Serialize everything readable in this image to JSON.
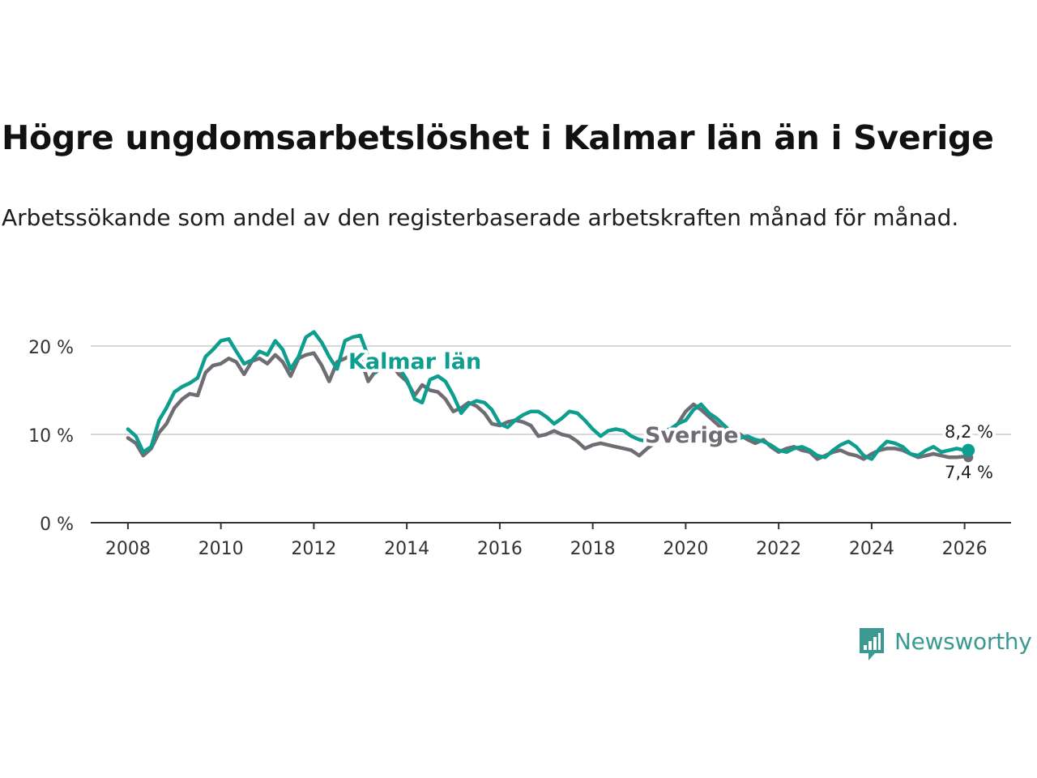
{
  "title": "Högre ungdomsarbetslöshet i Kalmar län än i Sverige",
  "subtitle": "Arbetssökande som andel av den registerbaserade arbetskraften månad för månad.",
  "brand": {
    "name": "Newsworthy"
  },
  "colors": {
    "kalmar": "#0e9e8f",
    "sverige": "#6f6c73",
    "grid": "#d9d9d9",
    "axis": "#333333",
    "brand": "#3a9a92"
  },
  "chart_data": {
    "type": "line",
    "title": "Högre ungdomsarbetslöshet i Kalmar län än i Sverige",
    "xlabel": "",
    "ylabel": "",
    "xlim": [
      2007.2,
      2027.0
    ],
    "ylim": [
      0,
      20
    ],
    "y_ticks": [
      0,
      10,
      20
    ],
    "y_tick_labels": [
      "0 %",
      "10 %",
      "20 %"
    ],
    "x_ticks": [
      2008,
      2010,
      2012,
      2014,
      2016,
      2018,
      2020,
      2022,
      2024,
      2026
    ],
    "x_tick_labels": [
      "2008",
      "2010",
      "2012",
      "2014",
      "2016",
      "2018",
      "2020",
      "2022",
      "2024",
      "2026"
    ],
    "grid": true,
    "series": [
      {
        "name": "Sverige",
        "label": "Sverige",
        "end_label": "7,4 %",
        "points": [
          [
            2008.0,
            9.6
          ],
          [
            2008.17,
            9.0
          ],
          [
            2008.33,
            7.6
          ],
          [
            2008.5,
            8.4
          ],
          [
            2008.67,
            10.2
          ],
          [
            2008.83,
            11.2
          ],
          [
            2009.0,
            13.0
          ],
          [
            2009.17,
            14.0
          ],
          [
            2009.33,
            14.6
          ],
          [
            2009.5,
            14.4
          ],
          [
            2009.67,
            17.0
          ],
          [
            2009.83,
            17.8
          ],
          [
            2010.0,
            18.0
          ],
          [
            2010.17,
            18.6
          ],
          [
            2010.33,
            18.2
          ],
          [
            2010.5,
            16.8
          ],
          [
            2010.67,
            18.3
          ],
          [
            2010.83,
            18.6
          ],
          [
            2011.0,
            18.0
          ],
          [
            2011.17,
            19.0
          ],
          [
            2011.33,
            18.2
          ],
          [
            2011.5,
            16.6
          ],
          [
            2011.67,
            18.6
          ],
          [
            2011.83,
            19.0
          ],
          [
            2012.0,
            19.2
          ],
          [
            2012.17,
            17.8
          ],
          [
            2012.33,
            16.0
          ],
          [
            2012.5,
            18.2
          ],
          [
            2012.67,
            18.6
          ],
          [
            2012.83,
            19.0
          ],
          [
            2013.0,
            18.6
          ],
          [
            2013.17,
            16.0
          ],
          [
            2013.33,
            17.2
          ],
          [
            2013.5,
            17.8
          ],
          [
            2013.67,
            18.0
          ],
          [
            2013.83,
            16.8
          ],
          [
            2014.0,
            16.0
          ],
          [
            2014.17,
            14.4
          ],
          [
            2014.33,
            15.6
          ],
          [
            2014.5,
            15.0
          ],
          [
            2014.67,
            14.8
          ],
          [
            2014.83,
            14.0
          ],
          [
            2015.0,
            12.6
          ],
          [
            2015.17,
            13.0
          ],
          [
            2015.33,
            13.6
          ],
          [
            2015.5,
            13.2
          ],
          [
            2015.67,
            12.4
          ],
          [
            2015.83,
            11.2
          ],
          [
            2016.0,
            11.0
          ],
          [
            2016.17,
            11.4
          ],
          [
            2016.33,
            11.6
          ],
          [
            2016.5,
            11.4
          ],
          [
            2016.67,
            11.0
          ],
          [
            2016.83,
            9.8
          ],
          [
            2017.0,
            10.0
          ],
          [
            2017.17,
            10.4
          ],
          [
            2017.33,
            10.0
          ],
          [
            2017.5,
            9.8
          ],
          [
            2017.67,
            9.2
          ],
          [
            2017.83,
            8.4
          ],
          [
            2018.0,
            8.8
          ],
          [
            2018.17,
            9.0
          ],
          [
            2018.33,
            8.8
          ],
          [
            2018.5,
            8.6
          ],
          [
            2018.67,
            8.4
          ],
          [
            2018.83,
            8.2
          ],
          [
            2019.0,
            7.6
          ],
          [
            2019.17,
            8.4
          ],
          [
            2019.33,
            9.0
          ],
          [
            2019.5,
            9.6
          ],
          [
            2019.67,
            10.4
          ],
          [
            2019.83,
            11.2
          ],
          [
            2020.0,
            12.6
          ],
          [
            2020.17,
            13.4
          ],
          [
            2020.33,
            12.8
          ],
          [
            2020.5,
            12.0
          ],
          [
            2020.67,
            11.2
          ],
          [
            2020.83,
            10.4
          ],
          [
            2021.0,
            10.6
          ],
          [
            2021.17,
            10.0
          ],
          [
            2021.33,
            9.4
          ],
          [
            2021.5,
            9.0
          ],
          [
            2021.67,
            9.4
          ],
          [
            2021.83,
            8.6
          ],
          [
            2022.0,
            8.0
          ],
          [
            2022.17,
            8.4
          ],
          [
            2022.33,
            8.6
          ],
          [
            2022.5,
            8.2
          ],
          [
            2022.67,
            8.0
          ],
          [
            2022.83,
            7.2
          ],
          [
            2023.0,
            7.6
          ],
          [
            2023.17,
            8.0
          ],
          [
            2023.33,
            8.2
          ],
          [
            2023.5,
            7.8
          ],
          [
            2023.67,
            7.6
          ],
          [
            2023.83,
            7.2
          ],
          [
            2024.0,
            7.8
          ],
          [
            2024.17,
            8.2
          ],
          [
            2024.33,
            8.4
          ],
          [
            2024.5,
            8.4
          ],
          [
            2024.67,
            8.2
          ],
          [
            2024.83,
            7.8
          ],
          [
            2025.0,
            7.4
          ],
          [
            2025.17,
            7.6
          ],
          [
            2025.33,
            7.8
          ],
          [
            2025.5,
            7.6
          ],
          [
            2025.67,
            7.4
          ],
          [
            2025.83,
            7.4
          ],
          [
            2026.0,
            7.5
          ],
          [
            2026.08,
            7.4
          ]
        ]
      },
      {
        "name": "Kalmar län",
        "label": "Kalmar län",
        "end_label": "8,2 %",
        "points": [
          [
            2008.0,
            10.6
          ],
          [
            2008.17,
            9.8
          ],
          [
            2008.33,
            8.0
          ],
          [
            2008.5,
            8.6
          ],
          [
            2008.67,
            11.6
          ],
          [
            2008.83,
            13.0
          ],
          [
            2009.0,
            14.8
          ],
          [
            2009.17,
            15.4
          ],
          [
            2009.33,
            15.8
          ],
          [
            2009.5,
            16.4
          ],
          [
            2009.67,
            18.8
          ],
          [
            2009.83,
            19.6
          ],
          [
            2010.0,
            20.6
          ],
          [
            2010.17,
            20.8
          ],
          [
            2010.33,
            19.4
          ],
          [
            2010.5,
            18.0
          ],
          [
            2010.67,
            18.4
          ],
          [
            2010.83,
            19.4
          ],
          [
            2011.0,
            19.0
          ],
          [
            2011.17,
            20.6
          ],
          [
            2011.33,
            19.6
          ],
          [
            2011.5,
            17.4
          ],
          [
            2011.67,
            18.8
          ],
          [
            2011.83,
            21.0
          ],
          [
            2012.0,
            21.6
          ],
          [
            2012.17,
            20.4
          ],
          [
            2012.33,
            18.8
          ],
          [
            2012.5,
            17.4
          ],
          [
            2012.67,
            20.6
          ],
          [
            2012.83,
            21.0
          ],
          [
            2013.0,
            21.2
          ],
          [
            2013.17,
            18.8
          ],
          [
            2013.33,
            17.0
          ],
          [
            2013.5,
            17.8
          ],
          [
            2013.67,
            18.4
          ],
          [
            2013.83,
            17.6
          ],
          [
            2014.0,
            16.2
          ],
          [
            2014.17,
            14.0
          ],
          [
            2014.33,
            13.6
          ],
          [
            2014.5,
            16.2
          ],
          [
            2014.67,
            16.6
          ],
          [
            2014.83,
            16.0
          ],
          [
            2015.0,
            14.4
          ],
          [
            2015.17,
            12.4
          ],
          [
            2015.33,
            13.4
          ],
          [
            2015.5,
            13.8
          ],
          [
            2015.67,
            13.6
          ],
          [
            2015.83,
            12.8
          ],
          [
            2016.0,
            11.2
          ],
          [
            2016.17,
            10.8
          ],
          [
            2016.33,
            11.6
          ],
          [
            2016.5,
            12.2
          ],
          [
            2016.67,
            12.6
          ],
          [
            2016.83,
            12.6
          ],
          [
            2017.0,
            12.0
          ],
          [
            2017.17,
            11.2
          ],
          [
            2017.33,
            11.8
          ],
          [
            2017.5,
            12.6
          ],
          [
            2017.67,
            12.4
          ],
          [
            2017.83,
            11.6
          ],
          [
            2018.0,
            10.6
          ],
          [
            2018.17,
            9.8
          ],
          [
            2018.33,
            10.4
          ],
          [
            2018.5,
            10.6
          ],
          [
            2018.67,
            10.4
          ],
          [
            2018.83,
            9.8
          ],
          [
            2019.0,
            9.4
          ],
          [
            2019.17,
            9.2
          ],
          [
            2019.33,
            9.6
          ],
          [
            2019.5,
            10.4
          ],
          [
            2019.67,
            10.6
          ],
          [
            2019.83,
            11.2
          ],
          [
            2020.0,
            11.6
          ],
          [
            2020.17,
            12.8
          ],
          [
            2020.33,
            13.4
          ],
          [
            2020.5,
            12.4
          ],
          [
            2020.67,
            11.8
          ],
          [
            2020.83,
            11.0
          ],
          [
            2021.0,
            10.2
          ],
          [
            2021.17,
            9.6
          ],
          [
            2021.33,
            9.8
          ],
          [
            2021.5,
            9.4
          ],
          [
            2021.67,
            9.2
          ],
          [
            2021.83,
            8.8
          ],
          [
            2022.0,
            8.2
          ],
          [
            2022.17,
            8.0
          ],
          [
            2022.33,
            8.4
          ],
          [
            2022.5,
            8.6
          ],
          [
            2022.67,
            8.2
          ],
          [
            2022.83,
            7.6
          ],
          [
            2023.0,
            7.4
          ],
          [
            2023.17,
            8.2
          ],
          [
            2023.33,
            8.8
          ],
          [
            2023.5,
            9.2
          ],
          [
            2023.67,
            8.6
          ],
          [
            2023.83,
            7.6
          ],
          [
            2024.0,
            7.2
          ],
          [
            2024.17,
            8.4
          ],
          [
            2024.33,
            9.2
          ],
          [
            2024.5,
            9.0
          ],
          [
            2024.67,
            8.6
          ],
          [
            2024.83,
            7.8
          ],
          [
            2025.0,
            7.6
          ],
          [
            2025.17,
            8.2
          ],
          [
            2025.33,
            8.6
          ],
          [
            2025.5,
            8.0
          ],
          [
            2025.67,
            8.2
          ],
          [
            2025.83,
            8.4
          ],
          [
            2026.0,
            8.2
          ],
          [
            2026.08,
            8.2
          ]
        ]
      }
    ]
  }
}
